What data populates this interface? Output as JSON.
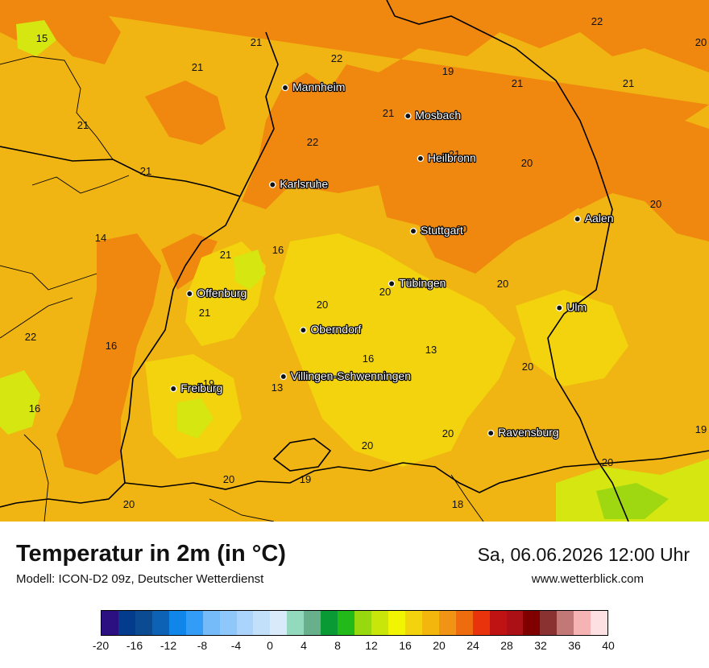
{
  "map": {
    "cities": [
      {
        "name": "Mannheim",
        "lon": 8.47,
        "lat": 49.49
      },
      {
        "name": "Mosbach",
        "lon": 9.15,
        "lat": 49.35
      },
      {
        "name": "Heilbronn",
        "lon": 9.22,
        "lat": 49.14
      },
      {
        "name": "Karlsruhe",
        "lon": 8.4,
        "lat": 49.01
      },
      {
        "name": "Aalen",
        "lon": 10.09,
        "lat": 48.84
      },
      {
        "name": "Stuttgart",
        "lon": 9.18,
        "lat": 48.78
      },
      {
        "name": "Tübingen",
        "lon": 9.06,
        "lat": 48.52
      },
      {
        "name": "Offenburg",
        "lon": 7.94,
        "lat": 48.47
      },
      {
        "name": "Ulm",
        "lon": 9.99,
        "lat": 48.4
      },
      {
        "name": "Oberndorf",
        "lon": 8.57,
        "lat": 48.29
      },
      {
        "name": "Villingen-Schwenningen",
        "lon": 8.46,
        "lat": 48.06
      },
      {
        "name": "Freiburg",
        "lon": 7.85,
        "lat": 48.0
      },
      {
        "name": "Ravensburg",
        "lon": 9.61,
        "lat": 47.78
      }
    ],
    "temperature_labels": [
      "15",
      "21",
      "22",
      "21",
      "19",
      "21",
      "21",
      "22",
      "20",
      "21",
      "22",
      "21",
      "20",
      "21",
      "21",
      "20",
      "14",
      "21",
      "20",
      "16",
      "20",
      "20",
      "20",
      "21",
      "22",
      "16",
      "16",
      "13",
      "19",
      "20",
      "13",
      "16",
      "20",
      "20",
      "19",
      "20",
      "20",
      "19",
      "20",
      "18"
    ]
  },
  "legend": {
    "title": "Temperatur in 2m (in °C)",
    "model": "Modell: ICON-D2 09z, Deutscher Wetterdienst",
    "datetime": "Sa, 06.06.2026 12:00 Uhr",
    "website": "www.wetterblick.com",
    "unit": "°C",
    "colorbar_colors": [
      "#2c0f80",
      "#033c8c",
      "#0b4b92",
      "#0d62b5",
      "#1085ea",
      "#329cf6",
      "#75bbf9",
      "#8ec7fa",
      "#aad4fb",
      "#c3e0fb",
      "#d9ebfb",
      "#93d9bd",
      "#67b08b",
      "#0a9a35",
      "#22ba19",
      "#97d80f",
      "#c8e60a",
      "#f1f501",
      "#f2d30e",
      "#f3b60d",
      "#f19416",
      "#ef6c0e",
      "#e9330d",
      "#be1312",
      "#aa1016",
      "#800000",
      "#8a3131",
      "#c17877",
      "#f5b4b3",
      "#fde0e2"
    ],
    "ticks": [
      "-20",
      "-16",
      "-12",
      "-8",
      "-4",
      "0",
      "4",
      "8",
      "12",
      "16",
      "20",
      "24",
      "28",
      "32",
      "36",
      "40"
    ]
  }
}
